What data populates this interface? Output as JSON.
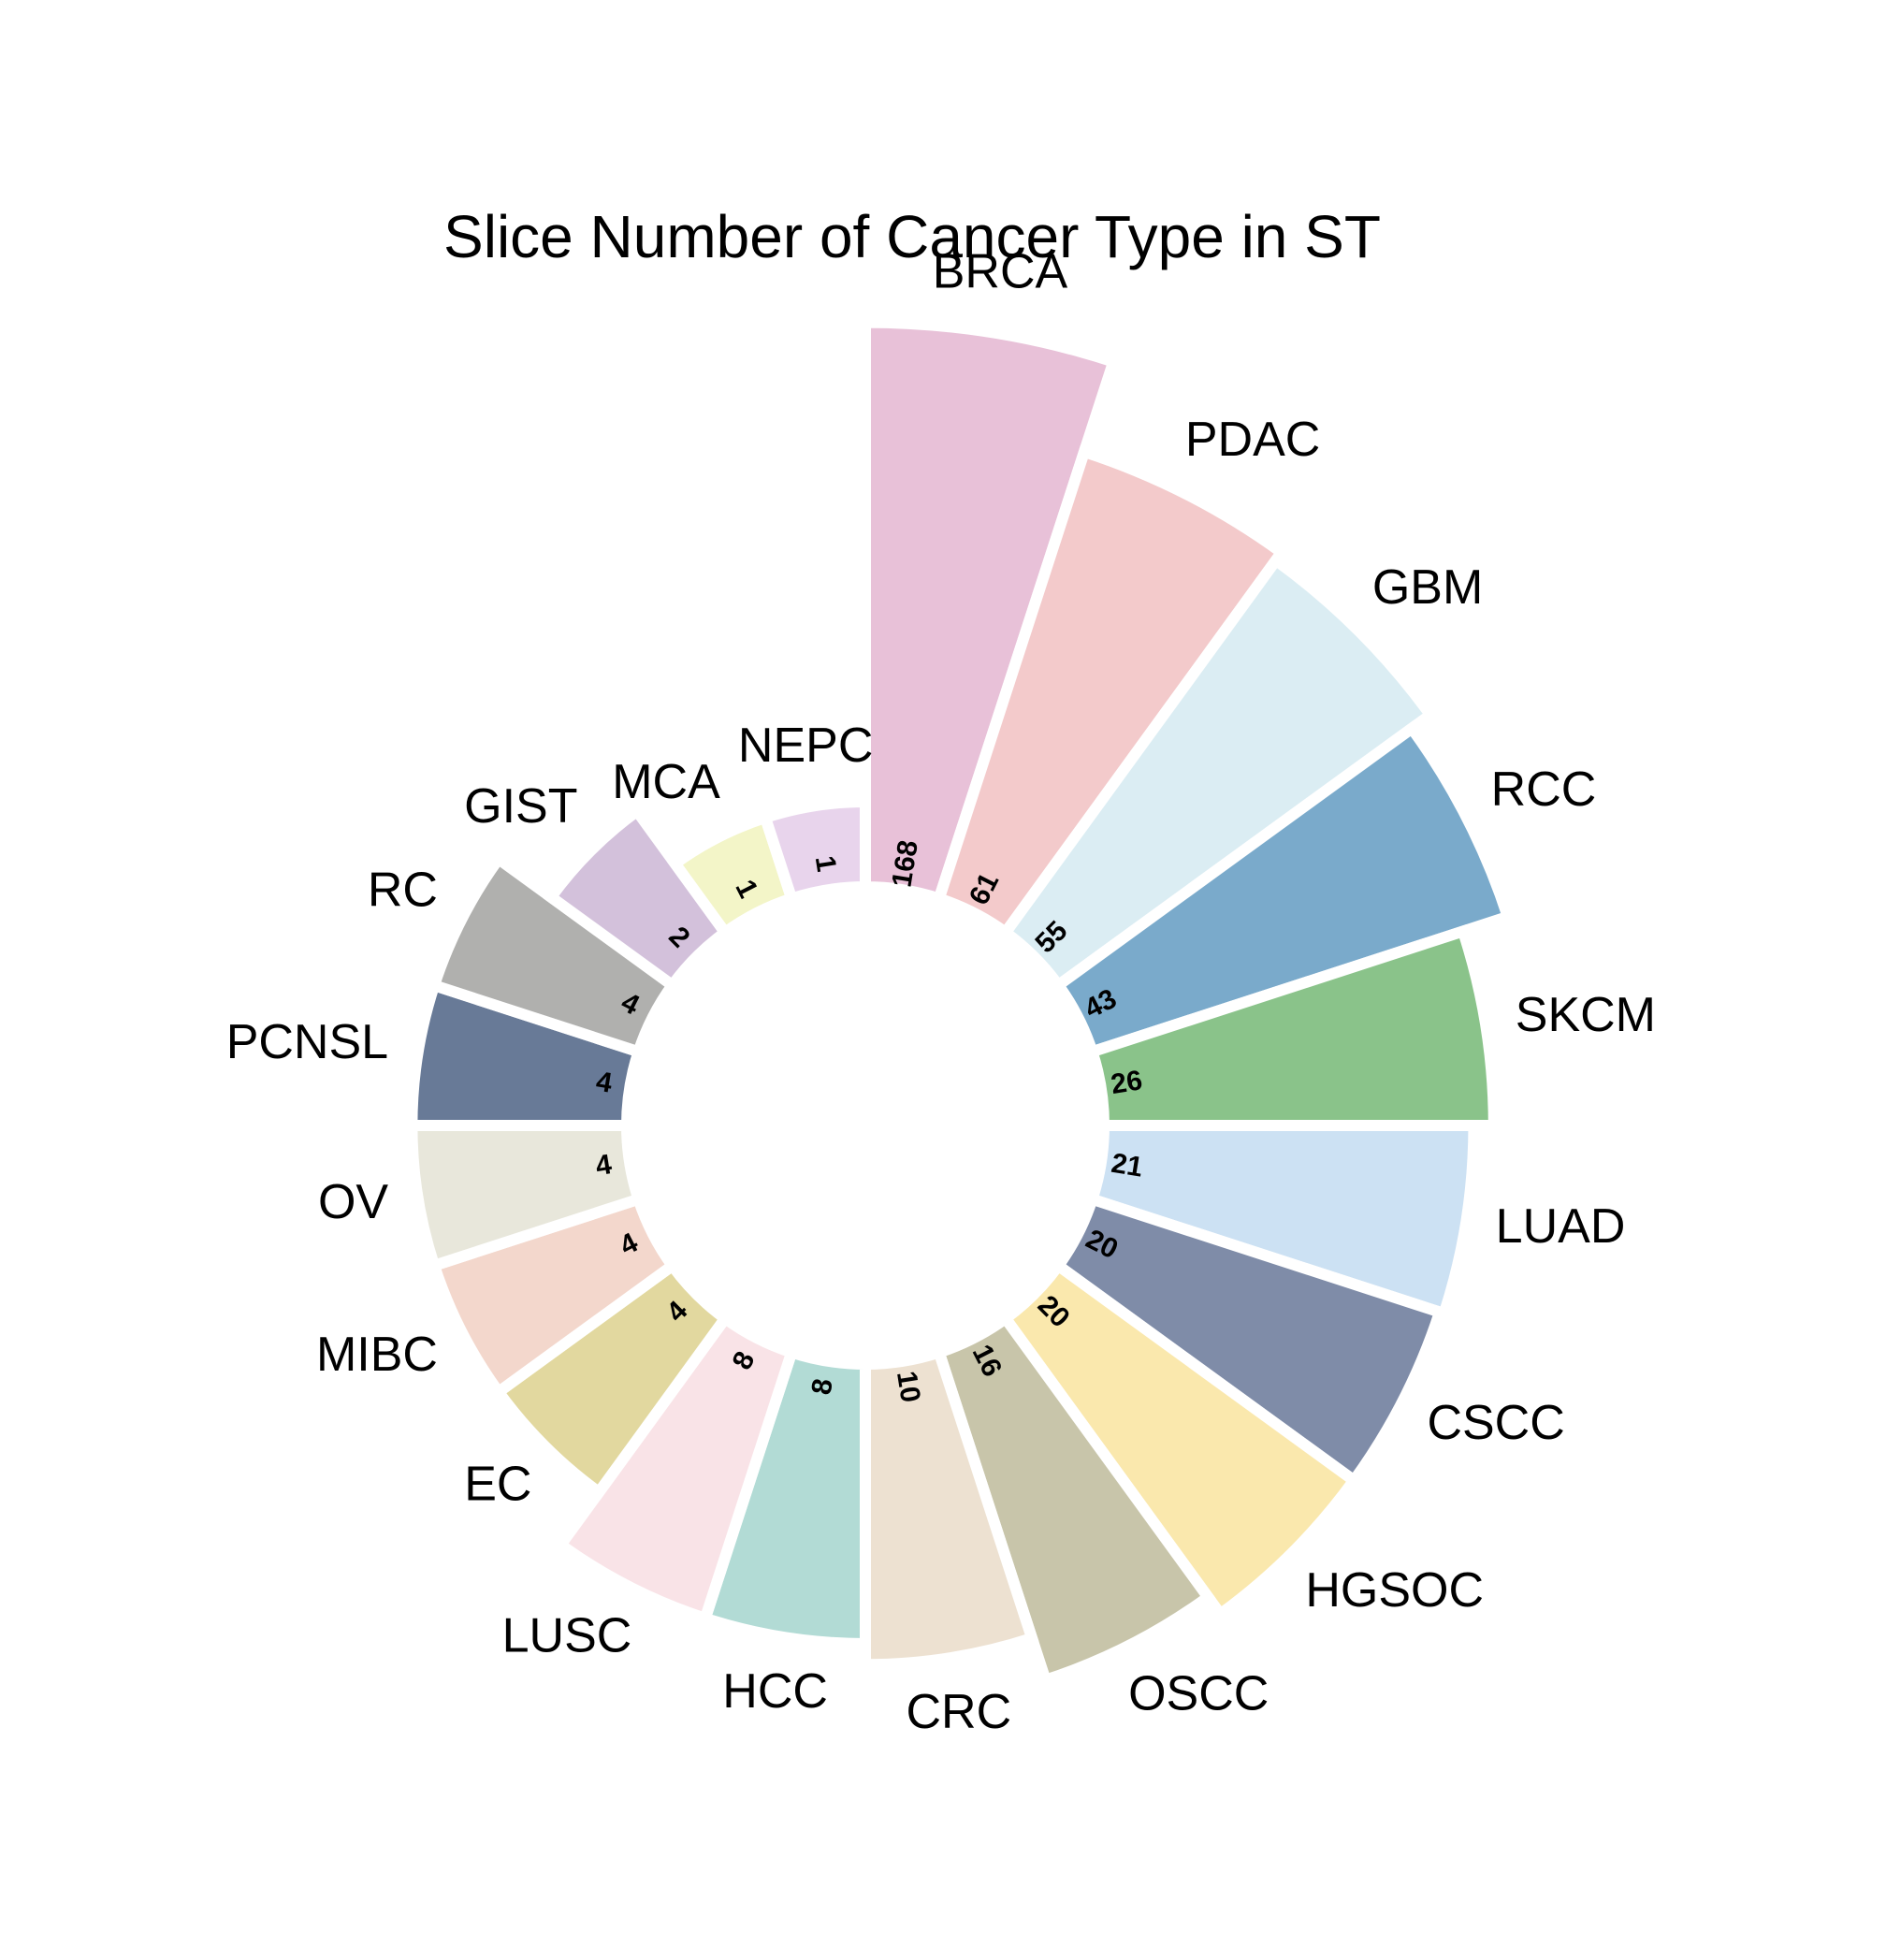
{
  "chart_data": {
    "type": "radial-bar",
    "title": "Slice Number of Cancer Type in ST",
    "log_scale": true,
    "categories": [
      "BRCA",
      "PDAC",
      "GBM",
      "RCC",
      "SKCM",
      "LUAD",
      "CSCC",
      "HGSOC",
      "OSCC",
      "CRC",
      "HCC",
      "LUSC",
      "EC",
      "MIBC",
      "OV",
      "PCNSL",
      "RC",
      "GIST",
      "MCA",
      "NEPC"
    ],
    "values": [
      168,
      61,
      55,
      43,
      26,
      21,
      20,
      20,
      16,
      10,
      8,
      8,
      4,
      4,
      4,
      4,
      4,
      2,
      1,
      1
    ],
    "colors": [
      "#e8c1d8",
      "#f3cacb",
      "#dbedf3",
      "#7aaacb",
      "#8ac38a",
      "#cce1f3",
      "#7f8ca8",
      "#fae8ad",
      "#c8c5aa",
      "#ede1d1",
      "#b2dbd5",
      "#f9e3e7",
      "#e2d89f",
      "#f3d7cc",
      "#e8e7db",
      "#687a97",
      "#b0b0ae",
      "#d3c1db",
      "#f3f5c8",
      "#e8d4ec"
    ]
  }
}
